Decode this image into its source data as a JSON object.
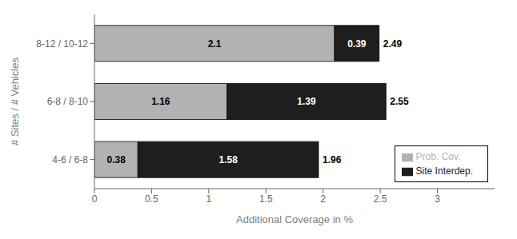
{
  "chart_data": {
    "type": "bar",
    "orientation": "horizontal",
    "stacked": true,
    "data_labels": true,
    "grid": false,
    "legend": "lower right",
    "categories": [
      "4-6 / 6-8",
      "6-8 / 8-10",
      "8-12 / 10-12"
    ],
    "series": [
      {
        "name": "Prob. Cov.",
        "color": "#b2b2b2",
        "values": [
          0.38,
          1.16,
          2.1
        ]
      },
      {
        "name": "Site Interdep.",
        "color": "#1e1e1e",
        "values": [
          1.58,
          1.39,
          0.39
        ]
      }
    ],
    "totals": [
      1.96,
      2.55,
      2.49
    ],
    "xlabel": "Additional Coverage in %",
    "ylabel": "# Sites / # Vehicles",
    "xlim": [
      0,
      3.5
    ],
    "xticks": [
      0,
      0.5,
      1,
      1.5,
      2,
      2.5,
      3
    ]
  }
}
